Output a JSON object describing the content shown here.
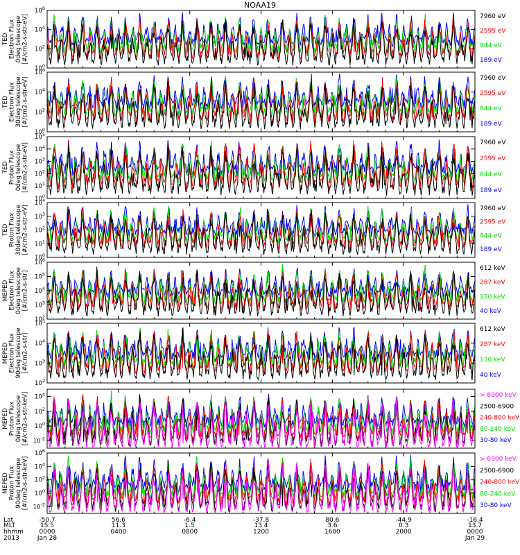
{
  "title": "NOAA19",
  "colors": {
    "black": "#000000",
    "red": "#ff0000",
    "green": "#00dd00",
    "blue": "#0000ff",
    "magenta": "#ff00ff",
    "axis": "#000000"
  },
  "footer": {
    "row_labels": [
      "Lat",
      "MLT",
      "hhmm",
      "2013"
    ],
    "ticks": [
      {
        "lat": "-50.7",
        "mlt": "15.5",
        "hhmm": "0000",
        "date": "Jan 28"
      },
      {
        "lat": "56.6",
        "mlt": "11.3",
        "hhmm": "0400",
        "date": ""
      },
      {
        "lat": "-6.4",
        "mlt": "1.5",
        "hhmm": "0800",
        "date": ""
      },
      {
        "lat": "-37.8",
        "mlt": "13.4",
        "hhmm": "1200",
        "date": ""
      },
      {
        "lat": "80.6",
        "mlt": "3.6",
        "hhmm": "1600",
        "date": ""
      },
      {
        "lat": "-44.9",
        "mlt": "0.3",
        "hhmm": "2000",
        "date": ""
      },
      {
        "lat": "-16.4",
        "mlt": "13.7",
        "hhmm": "0000",
        "date": "Jan 29"
      }
    ]
  },
  "chart_data": [
    {
      "type": "line",
      "ylabel_lines": [
        "TED",
        "Electron Flux",
        "0deg telescope",
        "[#/cm2-s-str-eV]"
      ],
      "y_ticks": [
        {
          "exp": 0,
          "label": "10"
        },
        {
          "exp": 2,
          "label": "10"
        },
        {
          "exp": 4,
          "label": "10"
        },
        {
          "exp": 6,
          "label": "10"
        }
      ],
      "ylim_log10": [
        0,
        6
      ],
      "x_ticks": [
        "0000",
        "0400",
        "0800",
        "1200",
        "1600",
        "2000",
        "0000"
      ],
      "series": [
        {
          "name": "7960 eV",
          "color": "#000000"
        },
        {
          "name": "2595 eV",
          "color": "#ff0000"
        },
        {
          "name": "844 eV",
          "color": "#00dd00"
        },
        {
          "name": "189 eV",
          "color": "#0000ff"
        }
      ]
    },
    {
      "type": "line",
      "ylabel_lines": [
        "TED",
        "Electron Flux",
        "30deg telescope",
        "[#/cm2-s-str-eV]"
      ],
      "y_ticks": [
        {
          "exp": 0,
          "label": "10"
        },
        {
          "exp": 2,
          "label": "10"
        },
        {
          "exp": 4,
          "label": "10"
        },
        {
          "exp": 6,
          "label": "10"
        }
      ],
      "ylim_log10": [
        0,
        6
      ],
      "x_ticks": [
        "0000",
        "0400",
        "0800",
        "1200",
        "1600",
        "2000",
        "0000"
      ],
      "series": [
        {
          "name": "7960 eV",
          "color": "#000000"
        },
        {
          "name": "2595 eV",
          "color": "#ff0000"
        },
        {
          "name": "844 eV",
          "color": "#00dd00"
        },
        {
          "name": "189 eV",
          "color": "#0000ff"
        }
      ]
    },
    {
      "type": "line",
      "ylabel_lines": [
        "TED",
        "Proton Flux",
        "0deg telescope",
        "[#/cm2-s-str-eV]"
      ],
      "y_ticks": [
        {
          "exp": 0,
          "label": "10"
        },
        {
          "exp": 1,
          "label": "10"
        },
        {
          "exp": 2,
          "label": "10"
        },
        {
          "exp": 3,
          "label": "10"
        },
        {
          "exp": 4,
          "label": "10"
        },
        {
          "exp": 5,
          "label": "10"
        }
      ],
      "ylim_log10": [
        0,
        5
      ],
      "x_ticks": [
        "0000",
        "0400",
        "0800",
        "1200",
        "1600",
        "2000",
        "0000"
      ],
      "series": [
        {
          "name": "7960 eV",
          "color": "#000000"
        },
        {
          "name": "2595 eV",
          "color": "#ff0000"
        },
        {
          "name": "844 eV",
          "color": "#00dd00"
        },
        {
          "name": "189 eV",
          "color": "#0000ff"
        }
      ]
    },
    {
      "type": "line",
      "ylabel_lines": [
        "TED",
        "Proton Flux",
        "30deg telescope",
        "[#/cm2-s-str-eV]"
      ],
      "y_ticks": [
        {
          "exp": 0,
          "label": "10"
        },
        {
          "exp": 1,
          "label": "10"
        },
        {
          "exp": 2,
          "label": "10"
        },
        {
          "exp": 3,
          "label": "10"
        },
        {
          "exp": 4,
          "label": "10"
        }
      ],
      "ylim_log10": [
        0,
        4
      ],
      "x_ticks": [
        "0000",
        "0400",
        "0800",
        "1200",
        "1600",
        "2000",
        "0000"
      ],
      "series": [
        {
          "name": "7960 eV",
          "color": "#000000"
        },
        {
          "name": "2595 eV",
          "color": "#ff0000"
        },
        {
          "name": "844 eV",
          "color": "#00dd00"
        },
        {
          "name": "189 eV",
          "color": "#0000ff"
        }
      ]
    },
    {
      "type": "line",
      "ylabel_lines": [
        "MEPED",
        "Electron Flux",
        "0deg telescope",
        "[#/cm2-s-str]"
      ],
      "y_ticks": [
        {
          "exp": 2,
          "label": "10"
        },
        {
          "exp": 3,
          "label": "10"
        },
        {
          "exp": 4,
          "label": "10"
        },
        {
          "exp": 5,
          "label": "10"
        },
        {
          "exp": 6,
          "label": "10"
        }
      ],
      "ylim_log10": [
        2,
        6
      ],
      "x_ticks": [
        "0000",
        "0400",
        "0800",
        "1200",
        "1600",
        "2000",
        "0000"
      ],
      "series": [
        {
          "name": "612 keV",
          "color": "#000000"
        },
        {
          "name": "287 keV",
          "color": "#ff0000"
        },
        {
          "name": "130 keV",
          "color": "#00dd00"
        },
        {
          "name": "40 keV",
          "color": "#0000ff"
        }
      ]
    },
    {
      "type": "line",
      "ylabel_lines": [
        "MEPED",
        "Electron Flux",
        "90deg telescope",
        "[#/cm2-s-str]"
      ],
      "y_ticks": [
        {
          "exp": 2,
          "label": "10"
        },
        {
          "exp": 3,
          "label": "10"
        },
        {
          "exp": 4,
          "label": "10"
        },
        {
          "exp": 5,
          "label": "10"
        }
      ],
      "ylim_log10": [
        2,
        5
      ],
      "x_ticks": [
        "0000",
        "0400",
        "0800",
        "1200",
        "1600",
        "2000",
        "0000"
      ],
      "series": [
        {
          "name": "612 keV",
          "color": "#000000"
        },
        {
          "name": "287 keV",
          "color": "#ff0000"
        },
        {
          "name": "130 keV",
          "color": "#00dd00"
        },
        {
          "name": "40 keV",
          "color": "#0000ff"
        }
      ]
    },
    {
      "type": "line",
      "ylabel_lines": [
        "MEPED",
        "Proton Flux",
        "0deg telescope",
        "[#/cm2-s-str-keV]"
      ],
      "y_ticks": [
        {
          "exp": -2,
          "label": "10"
        },
        {
          "exp": 0,
          "label": "10"
        },
        {
          "exp": 2,
          "label": "10"
        },
        {
          "exp": 4,
          "label": "10"
        }
      ],
      "ylim_log10": [
        -3,
        5
      ],
      "x_ticks": [
        "0000",
        "0400",
        "0800",
        "1200",
        "1600",
        "2000",
        "0000"
      ],
      "series": [
        {
          "name": "> 6900 keV",
          "color": "#ff00ff"
        },
        {
          "name": "2500-6900",
          "color": "#000000"
        },
        {
          "name": "240-800 keV",
          "color": "#ff0000"
        },
        {
          "name": "80-240 keV",
          "color": "#00dd00"
        },
        {
          "name": "30-80 keV",
          "color": "#0000ff"
        }
      ]
    },
    {
      "type": "line",
      "ylabel_lines": [
        "MEPED",
        "Proton Flux",
        "90deg telescope",
        "[#/cm2-s-str-keV]"
      ],
      "y_ticks": [
        {
          "exp": -2,
          "label": "10"
        },
        {
          "exp": 0,
          "label": "10"
        },
        {
          "exp": 2,
          "label": "10"
        },
        {
          "exp": 4,
          "label": "10"
        },
        {
          "exp": 6,
          "label": "10"
        }
      ],
      "ylim_log10": [
        -3,
        6
      ],
      "x_ticks": [
        "0000",
        "0400",
        "0800",
        "1200",
        "1600",
        "2000",
        "0000"
      ],
      "series": [
        {
          "name": "> 6900 keV",
          "color": "#ff00ff"
        },
        {
          "name": "2500-6900",
          "color": "#000000"
        },
        {
          "name": "240-800 keV",
          "color": "#ff0000"
        },
        {
          "name": "80-240 keV",
          "color": "#00dd00"
        },
        {
          "name": "30-80 keV",
          "color": "#0000ff"
        }
      ]
    }
  ]
}
